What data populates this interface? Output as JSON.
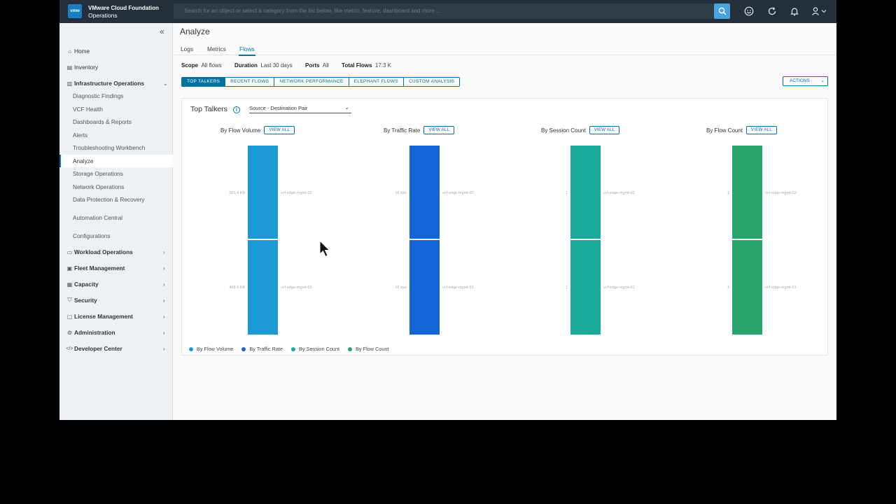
{
  "header": {
    "logo_text": "vmw",
    "brand_line1": "VMware Cloud Foundation",
    "brand_line2": "Operations",
    "search_placeholder": "Search for an object or select a category from the list below, like metric, feature, dashboard and more ..."
  },
  "sidebar": {
    "items": [
      {
        "label": "Home",
        "icon": "home-icon",
        "type": "top-plain"
      },
      {
        "label": "Inventory",
        "icon": "inventory-icon",
        "type": "top-plain"
      },
      {
        "label": "Infrastructure Operations",
        "icon": "infrastructure-icon",
        "type": "top",
        "expanded": true
      },
      {
        "label": "Diagnostic Findings",
        "type": "sub"
      },
      {
        "label": "VCF Health",
        "type": "sub"
      },
      {
        "label": "Dashboards & Reports",
        "type": "sub"
      },
      {
        "label": "Alerts",
        "type": "sub"
      },
      {
        "label": "Troubleshooting Workbench",
        "type": "sub"
      },
      {
        "label": "Analyze",
        "type": "sub",
        "active": true
      },
      {
        "label": "Storage Operations",
        "type": "sub"
      },
      {
        "label": "Network Operations",
        "type": "sub"
      },
      {
        "label": "Data Protection & Recovery",
        "type": "sub"
      },
      {
        "label": "Automation Central",
        "type": "sub"
      },
      {
        "label": "Configurations",
        "type": "sub"
      },
      {
        "label": "Workload Operations",
        "icon": "workload-icon",
        "type": "top"
      },
      {
        "label": "Fleet Management",
        "icon": "fleet-icon",
        "type": "top"
      },
      {
        "label": "Capacity",
        "icon": "capacity-icon",
        "type": "top"
      },
      {
        "label": "Security",
        "icon": "shield-icon",
        "type": "top"
      },
      {
        "label": "License Management",
        "icon": "license-icon",
        "type": "top"
      },
      {
        "label": "Administration",
        "icon": "admin-icon",
        "type": "top"
      },
      {
        "label": "Developer Center",
        "icon": "code-icon",
        "type": "top"
      }
    ]
  },
  "main": {
    "title": "Analyze",
    "tabs": [
      "Logs",
      "Metrics",
      "Flows"
    ],
    "active_tab": "Flows",
    "scope": {
      "scope_label": "Scope",
      "scope_value": "All flows",
      "duration_label": "Duration",
      "duration_value": "Last 30 days",
      "ports_label": "Ports",
      "ports_value": "All",
      "total_label": "Total Flows",
      "total_value": "17.3 K"
    },
    "flow_tabs": [
      "TOP TALKERS",
      "RECENT FLOWS",
      "NETWORK PERFORMANCE",
      "ELEPHANT FLOWS",
      "CUSTOM ANALYSIS"
    ],
    "actions_label": "ACTIONS",
    "card": {
      "title": "Top Talkers",
      "select_value": "Source - Destination Pair",
      "view_all": "VIEW ALL",
      "panels": [
        {
          "name": "By Flow Volume",
          "color": "#1d9ad6",
          "values": [
            "501.4 KB",
            "499.6 KB"
          ],
          "hosts": [
            "vcf-edge-mgmt-02",
            "vcf-edge-mgmt-01"
          ]
        },
        {
          "name": "By Traffic Rate",
          "color": "#1565d8",
          "values": [
            "16 bps",
            "16 bps"
          ],
          "hosts": [
            "vcf-edge-mgmt-02",
            "vcf-edge-mgmt-01"
          ]
        },
        {
          "name": "By Session Count",
          "color": "#1aaa9b",
          "values": [
            "1",
            "1"
          ],
          "hosts": [
            "vcf-edge-mgmt-02",
            "vcf-edge-mgmt-01"
          ]
        },
        {
          "name": "By Flow Count",
          "color": "#27a56c",
          "values": [
            "1",
            "1"
          ],
          "hosts": [
            "vcf-edge-mgmt-02",
            "vcf-edge-mgmt-01"
          ]
        }
      ],
      "legend": [
        "By Flow Volume",
        "By Traffic Rate",
        "By Session Count",
        "By Flow Count"
      ]
    }
  }
}
